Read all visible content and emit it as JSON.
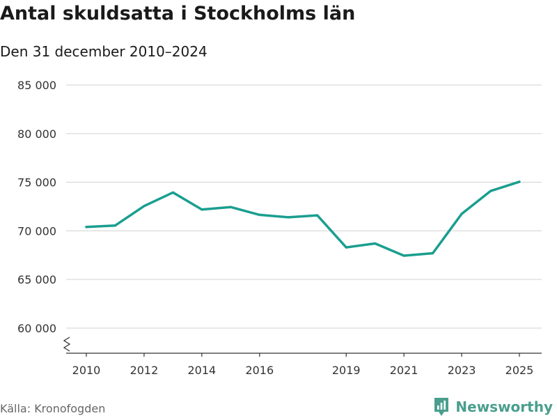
{
  "title": "Antal skuldsatta i Stockholms län",
  "subtitle": "Den 31 december 2010–2024",
  "source": "Källa: Kronofogden",
  "brand": {
    "name": "Newsworthy",
    "icon": "newsworthy-logo-icon"
  },
  "colors": {
    "line": "#1a9e8f",
    "grid": "#d9d9d9",
    "axis": "#333333",
    "brand": "#4a9e8e"
  },
  "chart_data": {
    "type": "line",
    "title": "Antal skuldsatta i Stockholms län",
    "subtitle": "Den 31 december 2010–2024",
    "xlabel": "",
    "ylabel": "",
    "xlim": [
      2009.9,
      2025.6
    ],
    "ylim": [
      57500,
      85000
    ],
    "y_ticks": [
      60000,
      65000,
      70000,
      75000,
      80000,
      85000
    ],
    "y_tick_labels": [
      "60 000",
      "65 000",
      "70 000",
      "75 000",
      "80 000",
      "85 000"
    ],
    "x_ticks": [
      2010,
      2012,
      2014,
      2016,
      2019,
      2021,
      2023,
      2025
    ],
    "x_tick_labels": [
      "2010",
      "2012",
      "2014",
      "2016",
      "2019",
      "2021",
      "2023",
      "2025"
    ],
    "axis_break": true,
    "grid": true,
    "series": [
      {
        "name": "Antal skuldsatta",
        "x": [
          2010,
          2011,
          2012,
          2013,
          2014,
          2015,
          2016,
          2017,
          2018,
          2019,
          2020,
          2021,
          2022,
          2023,
          2024,
          2025
        ],
        "values": [
          70400,
          70550,
          72550,
          73950,
          72200,
          72450,
          71650,
          71400,
          71600,
          68300,
          68700,
          67450,
          67700,
          71750,
          74100,
          75050
        ]
      }
    ]
  }
}
